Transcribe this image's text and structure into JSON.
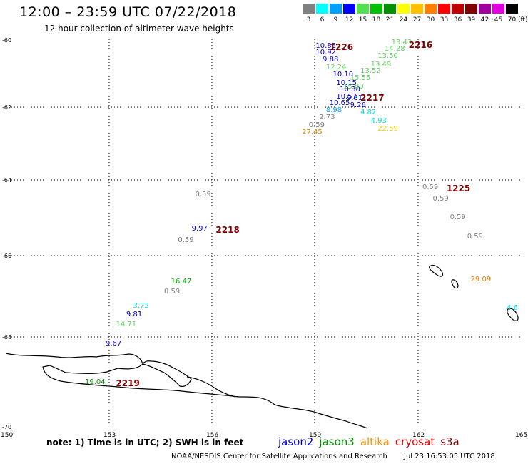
{
  "header": {
    "title": "12:00 – 23:59 UTC 07/22/2018",
    "subtitle": "12 hour collection of altimeter wave heights"
  },
  "legend": {
    "unit": "(ft)",
    "bins": [
      {
        "label": "3",
        "color": "#808080"
      },
      {
        "label": "6",
        "color": "#00ffff"
      },
      {
        "label": "9",
        "color": "#00a0ff"
      },
      {
        "label": "12",
        "color": "#0000ff"
      },
      {
        "label": "15",
        "color": "#50e050"
      },
      {
        "label": "18",
        "color": "#00c000"
      },
      {
        "label": "21",
        "color": "#009000"
      },
      {
        "label": "24",
        "color": "#ffff00"
      },
      {
        "label": "27",
        "color": "#ffc000"
      },
      {
        "label": "30",
        "color": "#ff8000"
      },
      {
        "label": "33",
        "color": "#ff0000"
      },
      {
        "label": "36",
        "color": "#c00000"
      },
      {
        "label": "39",
        "color": "#800000"
      },
      {
        "label": "42",
        "color": "#a000a0"
      },
      {
        "label": "45",
        "color": "#e000e0"
      },
      {
        "label": "70",
        "color": "#000000"
      }
    ]
  },
  "axes": {
    "lat_labels": [
      "-60",
      "-62",
      "-64",
      "-66",
      "-68",
      "-70"
    ],
    "lon_labels": [
      "150",
      "153",
      "156",
      "159",
      "162",
      "165"
    ]
  },
  "observations": [
    {
      "text": "10.85",
      "color": "#0000cc",
      "lon": 159.0,
      "lat": -60.2
    },
    {
      "text": "10.92",
      "color": "#0000cc",
      "lon": 159.0,
      "lat": -60.4
    },
    {
      "text": "9.88",
      "color": "#0000cc",
      "lon": 159.2,
      "lat": -60.6
    },
    {
      "text": "12.24",
      "color": "#60d060",
      "lon": 159.3,
      "lat": -60.85
    },
    {
      "text": "10.10",
      "color": "#0000cc",
      "lon": 159.5,
      "lat": -61.05
    },
    {
      "text": "10.15",
      "color": "#0000cc",
      "lon": 159.6,
      "lat": -61.3
    },
    {
      "text": "10.30",
      "color": "#0000cc",
      "lon": 159.7,
      "lat": -61.5
    },
    {
      "text": "10.57",
      "color": "#0000cc",
      "lon": 159.6,
      "lat": -61.7
    },
    {
      "text": "9.81",
      "color": "#0000cc",
      "lon": 159.9,
      "lat": -61.75
    },
    {
      "text": "10.65",
      "color": "#0000cc",
      "lon": 159.4,
      "lat": -61.9
    },
    {
      "text": "9.26",
      "color": "#0000cc",
      "lon": 160.0,
      "lat": -61.95
    },
    {
      "text": "8.98",
      "color": "#00a0ff",
      "lon": 159.3,
      "lat": -62.1
    },
    {
      "text": "2.73",
      "color": "#808080",
      "lon": 159.1,
      "lat": -62.3
    },
    {
      "text": "0.59",
      "color": "#808080",
      "lon": 158.8,
      "lat": -62.5
    },
    {
      "text": "27.45",
      "color": "#e08000",
      "lon": 158.6,
      "lat": -62.7
    },
    {
      "text": "13.43",
      "color": "#60d060",
      "lon": 161.2,
      "lat": -60.1
    },
    {
      "text": "14.28",
      "color": "#60d060",
      "lon": 161.0,
      "lat": -60.3
    },
    {
      "text": "13.50",
      "color": "#60d060",
      "lon": 160.8,
      "lat": -60.5
    },
    {
      "text": "13.49",
      "color": "#60d060",
      "lon": 160.6,
      "lat": -60.75
    },
    {
      "text": "13.52",
      "color": "#60d060",
      "lon": 160.3,
      "lat": -60.95
    },
    {
      "text": "15.55",
      "color": "#60d060",
      "lon": 160.0,
      "lat": -61.15
    },
    {
      "text": "15.80",
      "color": "#60d060",
      "lon": 159.8,
      "lat": -61.4
    },
    {
      "text": "4.82",
      "color": "#00e0e0",
      "lon": 160.3,
      "lat": -62.15
    },
    {
      "text": "4.93",
      "color": "#00e0e0",
      "lon": 160.6,
      "lat": -62.4
    },
    {
      "text": "22.59",
      "color": "#f0d000",
      "lon": 160.8,
      "lat": -62.6
    },
    {
      "text": "0.59",
      "color": "#808080",
      "lon": 155.5,
      "lat": -64.4
    },
    {
      "text": "9.97",
      "color": "#0000cc",
      "lon": 155.4,
      "lat": -65.3
    },
    {
      "text": "0.59",
      "color": "#808080",
      "lon": 155.0,
      "lat": -65.6
    },
    {
      "text": "16.47",
      "color": "#00b000",
      "lon": 154.8,
      "lat": -66.65
    },
    {
      "text": "0.59",
      "color": "#808080",
      "lon": 154.6,
      "lat": -66.9
    },
    {
      "text": "3.72",
      "color": "#00e0e0",
      "lon": 153.7,
      "lat": -67.25
    },
    {
      "text": "9.81",
      "color": "#0000cc",
      "lon": 153.5,
      "lat": -67.45
    },
    {
      "text": "14.71",
      "color": "#60d060",
      "lon": 153.2,
      "lat": -67.7
    },
    {
      "text": "9.67",
      "color": "#0000cc",
      "lon": 152.9,
      "lat": -68.15
    },
    {
      "text": "19.04",
      "color": "#009000",
      "lon": 152.3,
      "lat": -69.0
    },
    {
      "text": "0.59",
      "color": "#808080",
      "lon": 162.1,
      "lat": -64.2
    },
    {
      "text": "0.59",
      "color": "#808080",
      "lon": 162.4,
      "lat": -64.5
    },
    {
      "text": "0.59",
      "color": "#808080",
      "lon": 162.9,
      "lat": -65.0
    },
    {
      "text": "0.59",
      "color": "#808080",
      "lon": 163.4,
      "lat": -65.5
    },
    {
      "text": "29.09",
      "color": "#e08000",
      "lon": 163.5,
      "lat": -66.6
    },
    {
      "text": "4.6",
      "color": "#00e0e0",
      "lon": 164.6,
      "lat": -67.3
    }
  ],
  "pass_times": [
    {
      "text": "1226",
      "color": "#800000",
      "lon": 159.4,
      "lat": -60.2
    },
    {
      "text": "2216",
      "color": "#800000",
      "lon": 161.7,
      "lat": -60.15
    },
    {
      "text": "2217",
      "color": "#800000",
      "lon": 160.3,
      "lat": -61.7
    },
    {
      "text": "1225",
      "color": "#800000",
      "lon": 162.8,
      "lat": -64.2
    },
    {
      "text": "2218",
      "color": "#800000",
      "lon": 156.1,
      "lat": -65.3
    },
    {
      "text": "2219",
      "color": "#800000",
      "lon": 153.2,
      "lat": -69.0
    }
  ],
  "footer": {
    "note": "note: 1) Time is in UTC; 2) SWH is in feet",
    "satellites": [
      {
        "name": "jason2",
        "color": "#0000cc"
      },
      {
        "name": "jason3",
        "color": "#009000"
      },
      {
        "name": "altika",
        "color": "#ff9000"
      },
      {
        "name": "cryosat",
        "color": "#e00000"
      },
      {
        "name": "s3a",
        "color": "#800000"
      }
    ],
    "credit": "NOAA/NESDIS Center for Satellite Applications and Research",
    "timestamp": "Jul 23 16:53:05 UTC 2018"
  }
}
